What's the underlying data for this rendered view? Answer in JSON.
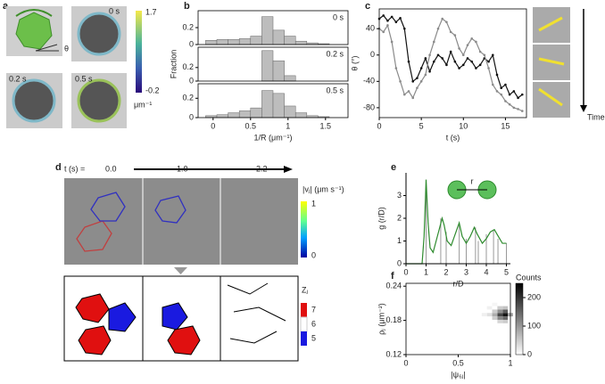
{
  "figure": {
    "panel_labels": [
      "a",
      "b",
      "c",
      "d",
      "e",
      "f"
    ],
    "panel_a": {
      "time_labels": [
        "0 s",
        "0.2 s",
        "0.5 s"
      ],
      "angle_label": "θ",
      "colorbar_ticks": [
        1.7,
        -0.2
      ],
      "colorbar_unit": "μm⁻¹"
    },
    "panel_c": {
      "arrow_label": "Time"
    },
    "panel_d": {
      "time_prefix": "t (s) =",
      "times": [
        "0.0",
        "1.0",
        "2.2"
      ],
      "speed_label": "|vⱼ| (μm s⁻¹)",
      "speed_ticks": [
        1,
        0
      ],
      "z_label": "Zⱼ",
      "z_ticks": [
        7,
        6,
        5
      ]
    },
    "panel_e": {
      "inset_label": "r"
    }
  },
  "chart_data": [
    {
      "type": "histogram",
      "annotation": "0 s",
      "bins": [
        -0.1,
        0.05,
        0.2,
        0.35,
        0.5,
        0.65,
        0.8,
        0.95,
        1.1,
        1.25,
        1.4,
        1.55,
        1.7
      ],
      "values": [
        0.05,
        0.06,
        0.06,
        0.07,
        0.1,
        0.33,
        0.17,
        0.1,
        0.04,
        0.02,
        0.01,
        0
      ],
      "color": "#bdbdbd",
      "xlim": [
        -0.2,
        1.8
      ],
      "ylim": [
        0,
        0.4
      ],
      "yticks": [
        0,
        0.2
      ],
      "frame": "box"
    },
    {
      "type": "histogram",
      "annotation": "0.2 s",
      "ylabel": "Fraction",
      "bins": [
        -0.1,
        0.05,
        0.2,
        0.35,
        0.5,
        0.65,
        0.8,
        0.95,
        1.1,
        1.25,
        1.4,
        1.55,
        1.7
      ],
      "values": [
        0,
        0,
        0,
        0,
        0,
        0.45,
        0.3,
        0.08,
        0,
        0,
        0,
        0
      ],
      "color": "#bdbdbd",
      "xlim": [
        -0.2,
        1.8
      ],
      "ylim": [
        0,
        0.5
      ],
      "yticks": [
        0,
        0.2
      ],
      "frame": "box"
    },
    {
      "type": "histogram",
      "annotation": "0.5 s",
      "xlabel": "1/R (μm⁻¹)",
      "bins": [
        -0.1,
        0.05,
        0.2,
        0.35,
        0.5,
        0.65,
        0.8,
        0.95,
        1.1,
        1.25,
        1.4,
        1.55,
        1.7
      ],
      "values": [
        0.02,
        0.03,
        0.05,
        0.07,
        0.1,
        0.28,
        0.25,
        0.12,
        0.05,
        0.02,
        0.01,
        0
      ],
      "color": "#bdbdbd",
      "xlim": [
        -0.2,
        1.8
      ],
      "ylim": [
        0,
        0.35
      ],
      "yticks": [
        0,
        0.2
      ],
      "xticks": [
        0,
        0.5,
        1,
        1.5
      ],
      "frame": "box"
    },
    {
      "type": "line",
      "xlabel": "t (s)",
      "ylabel": "θ (°)",
      "markers": true,
      "frame": "box",
      "x": [
        0,
        0.5,
        1,
        1.5,
        2,
        2.5,
        3,
        3.5,
        4,
        4.5,
        5,
        5.5,
        6,
        6.5,
        7,
        7.5,
        8,
        8.5,
        9,
        9.5,
        10,
        10.5,
        11,
        11.5,
        12,
        12.5,
        13,
        13.5,
        14,
        14.5,
        15,
        15.5,
        16,
        16.5,
        17
      ],
      "series": [
        {
          "color": "#111111",
          "values": [
            55,
            60,
            52,
            58,
            50,
            56,
            40,
            -10,
            -40,
            -35,
            -20,
            -5,
            -25,
            -10,
            0,
            -5,
            -15,
            5,
            -10,
            -20,
            -15,
            -5,
            -10,
            -20,
            -15,
            -5,
            -10,
            0,
            -30,
            -50,
            -45,
            -60,
            -55,
            -65,
            -60
          ]
        },
        {
          "color": "#8a8a8a",
          "values": [
            40,
            35,
            45,
            20,
            -20,
            -40,
            -60,
            -55,
            -65,
            -50,
            -40,
            -30,
            0,
            20,
            40,
            55,
            50,
            35,
            30,
            10,
            0,
            15,
            25,
            20,
            5,
            0,
            -20,
            -45,
            -55,
            -60,
            -70,
            -75,
            -80,
            -82,
            -85
          ]
        }
      ],
      "xlim": [
        0,
        17.5
      ],
      "ylim": [
        -95,
        70
      ],
      "xticks": [
        0,
        5,
        10,
        15
      ],
      "yticks": [
        -80,
        -40,
        0,
        40
      ]
    },
    {
      "type": "line",
      "xlabel": "r/D",
      "ylabel": "g (r/D)",
      "markers": false,
      "frame": "axes",
      "x": [
        0,
        0.8,
        0.9,
        1.0,
        1.1,
        1.2,
        1.35,
        1.5,
        1.65,
        1.8,
        1.9,
        2.05,
        2.25,
        2.45,
        2.65,
        2.8,
        3.0,
        3.2,
        3.4,
        3.55,
        3.8,
        4.0,
        4.2,
        4.4,
        4.6,
        4.8,
        5.0
      ],
      "series": [
        {
          "color": "#2e8b2e",
          "values": [
            0,
            0,
            1.2,
            3.7,
            1.8,
            0.7,
            0.5,
            1.0,
            1.5,
            2.0,
            1.7,
            1.0,
            0.8,
            1.3,
            1.8,
            1.2,
            0.9,
            1.2,
            1.6,
            1.3,
            0.9,
            1.1,
            1.4,
            1.5,
            1.2,
            0.9,
            0.9
          ]
        }
      ],
      "sticks": {
        "color": "#999999",
        "x": [
          1,
          1.73,
          2,
          2.65,
          3,
          3.46,
          3.6,
          4,
          4.36,
          4.58,
          5
        ],
        "values": [
          3.7,
          2.0,
          1.4,
          1.7,
          1.1,
          1.6,
          1.0,
          1.3,
          1.5,
          1.1,
          0.9
        ]
      },
      "xlim": [
        0,
        5.2
      ],
      "ylim": [
        0,
        4
      ],
      "xticks": [
        0,
        1,
        2,
        3,
        4,
        5
      ],
      "yticks": [
        0,
        1,
        2,
        3
      ]
    },
    {
      "type": "heatmap",
      "xlabel": "|ψ₆ⱼ|",
      "ylabel": "ρⱼ (μm⁻²)",
      "frame": "box",
      "x": [
        0.95,
        0.9,
        0.95,
        0.95,
        0.9,
        0.9,
        0.85,
        0.85,
        0.85,
        1.0,
        0.8,
        0.9,
        0.95,
        0.9,
        0.95,
        0.75,
        0.8,
        0.85
      ],
      "y": [
        0.19,
        0.19,
        0.196,
        0.184,
        0.196,
        0.184,
        0.19,
        0.196,
        0.184,
        0.19,
        0.19,
        0.202,
        0.202,
        0.178,
        0.178,
        0.19,
        0.202,
        0.208
      ],
      "values": [
        230,
        180,
        160,
        150,
        110,
        120,
        80,
        50,
        50,
        90,
        30,
        50,
        60,
        40,
        50,
        15,
        15,
        10
      ],
      "xlim": [
        0,
        1
      ],
      "ylim": [
        0.12,
        0.245
      ],
      "xticks": [
        0,
        0.5,
        1
      ],
      "yticks": [
        0.12,
        0.18,
        0.24
      ],
      "colorbar_label": "Counts",
      "clim": [
        0,
        250
      ],
      "cticks": [
        0,
        100,
        200
      ]
    }
  ]
}
